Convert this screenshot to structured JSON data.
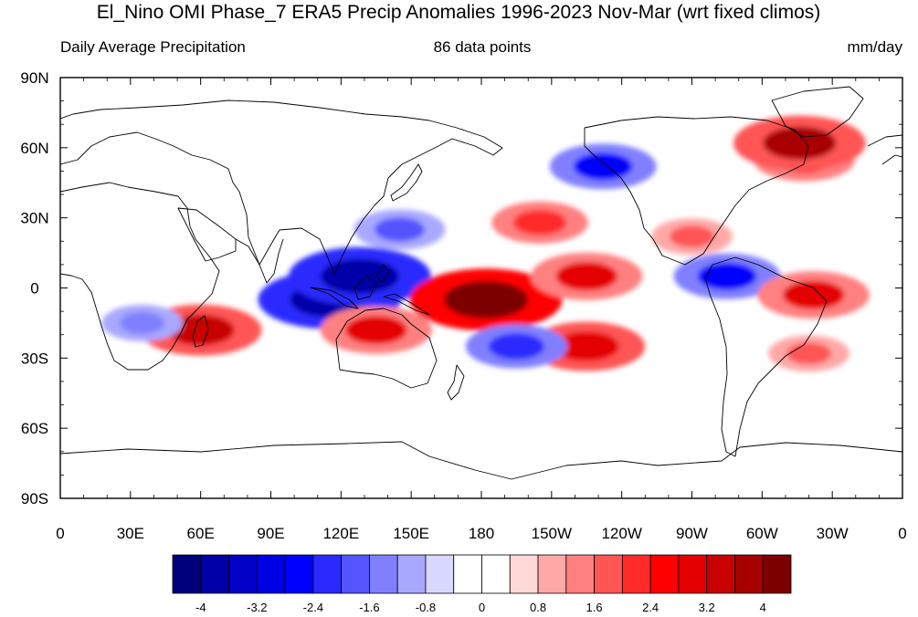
{
  "title": "El_Nino OMI Phase_7 ERA5 Precip Anomalies 1996-2023 Nov-Mar (wrt fixed climos)",
  "subtitle_left": "Daily Average Precipitation",
  "subtitle_center": "86 data points",
  "subtitle_right": "mm/day",
  "map": {
    "projection": "cylindrical-equidistant",
    "lon_range": [
      0,
      360
    ],
    "lat_range": [
      -90,
      90
    ],
    "lat_ticks": [
      {
        "value": 90,
        "label": "90N"
      },
      {
        "value": 60,
        "label": "60N"
      },
      {
        "value": 30,
        "label": "30N"
      },
      {
        "value": 0,
        "label": "0"
      },
      {
        "value": -30,
        "label": "30S"
      },
      {
        "value": -60,
        "label": "60S"
      },
      {
        "value": -90,
        "label": "90S"
      }
    ],
    "lon_ticks": [
      {
        "value": 0,
        "label": "0"
      },
      {
        "value": 30,
        "label": "30E"
      },
      {
        "value": 60,
        "label": "60E"
      },
      {
        "value": 90,
        "label": "90E"
      },
      {
        "value": 120,
        "label": "120E"
      },
      {
        "value": 150,
        "label": "150E"
      },
      {
        "value": 180,
        "label": "180"
      },
      {
        "value": 210,
        "label": "150W"
      },
      {
        "value": 240,
        "label": "120W"
      },
      {
        "value": 270,
        "label": "90W"
      },
      {
        "value": 300,
        "label": "60W"
      },
      {
        "value": 330,
        "label": "30W"
      },
      {
        "value": 360,
        "label": "0"
      }
    ]
  },
  "colorbar": {
    "colors": [
      "#00007c",
      "#0000a8",
      "#0000c8",
      "#0000e4",
      "#0000ff",
      "#2a2aff",
      "#5555ff",
      "#8080ff",
      "#a8a8ff",
      "#d8d8ff",
      "#ffffff",
      "#ffffff",
      "#ffd8d8",
      "#ffa8a8",
      "#ff8080",
      "#ff5555",
      "#ff2a2a",
      "#ff0000",
      "#e40000",
      "#c80000",
      "#a80000",
      "#7c0000"
    ],
    "labels": [
      {
        "value": -4,
        "label": "-4"
      },
      {
        "value": -3.2,
        "label": "-3.2"
      },
      {
        "value": -2.4,
        "label": "-2.4"
      },
      {
        "value": -1.6,
        "label": "-1.6"
      },
      {
        "value": -0.8,
        "label": "-0.8"
      },
      {
        "value": 0,
        "label": "0"
      },
      {
        "value": 0.8,
        "label": "0.8"
      },
      {
        "value": 1.6,
        "label": "1.6"
      },
      {
        "value": 2.4,
        "label": "2.4"
      },
      {
        "value": 3.2,
        "label": "3.2"
      },
      {
        "value": 4,
        "label": "4"
      }
    ]
  },
  "anomaly_fields": [
    {
      "region": "tropical-indian-ocean-maritime-continent",
      "lon": 115,
      "lat": -5,
      "value": -4.0
    },
    {
      "region": "south-china-sea-philippines",
      "lon": 128,
      "lat": 5,
      "value": -4.0
    },
    {
      "region": "central-equatorial-pacific",
      "lon": 182,
      "lat": -5,
      "value": 4.4
    },
    {
      "region": "equatorial-pacific-east",
      "lon": 225,
      "lat": 5,
      "value": 2.8
    },
    {
      "region": "southwest-indian-ocean-madagascar",
      "lon": 60,
      "lat": -18,
      "value": 3.2
    },
    {
      "region": "northwest-australia",
      "lon": 135,
      "lat": -18,
      "value": 2.8
    },
    {
      "region": "south-pacific-convergence-zone",
      "lon": 225,
      "lat": -25,
      "value": 3.0
    },
    {
      "region": "southwest-pacific",
      "lon": 195,
      "lat": -25,
      "value": -2.4
    },
    {
      "region": "north-pacific-subtropical",
      "lon": 205,
      "lat": 28,
      "value": 2.2
    },
    {
      "region": "east-china-sea-japan",
      "lon": 145,
      "lat": 25,
      "value": -2.0
    },
    {
      "region": "gulf-of-alaska",
      "lon": 232,
      "lat": 52,
      "value": -2.6
    },
    {
      "region": "north-atlantic",
      "lon": 318,
      "lat": 55,
      "value": 2.4
    },
    {
      "region": "southern-greenland",
      "lon": 316,
      "lat": 62,
      "value": 3.6
    },
    {
      "region": "gulf-of-mexico-southeast-us",
      "lon": 270,
      "lat": 22,
      "value": 1.6
    },
    {
      "region": "caribbean-northern-south-america",
      "lon": 285,
      "lat": 5,
      "value": -2.6
    },
    {
      "region": "northeast-brazil",
      "lon": 322,
      "lat": -3,
      "value": 2.8
    },
    {
      "region": "south-atlantic",
      "lon": 320,
      "lat": -28,
      "value": 1.6
    },
    {
      "region": "southern-africa",
      "lon": 35,
      "lat": -15,
      "value": -1.6
    }
  ]
}
